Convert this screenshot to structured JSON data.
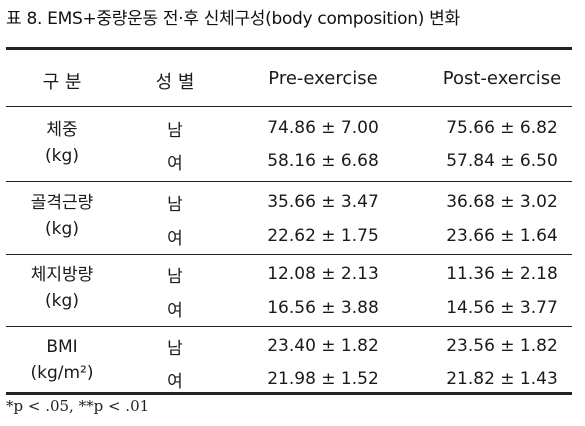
{
  "caption": "표 8. EMS+중량운동 전·후 신체구성(body composition) 변화",
  "columns": {
    "group": "구 분",
    "sex": "성 별",
    "pre": "Pre-exercise",
    "post": "Post-exercise"
  },
  "rows": [
    {
      "label": "체중",
      "unit": "(kg)",
      "male": {
        "sex": "남",
        "pre": "74.86 ± 7.00",
        "post": "75.66 ± 6.82"
      },
      "female": {
        "sex": "여",
        "pre": "58.16 ± 6.68",
        "post": "57.84 ± 6.50"
      }
    },
    {
      "label": "골격근량",
      "unit": "(kg)",
      "male": {
        "sex": "남",
        "pre": "35.66 ± 3.47",
        "post": "36.68 ± 3.02"
      },
      "female": {
        "sex": "여",
        "pre": "22.62 ± 1.75",
        "post": "23.66 ± 1.64"
      }
    },
    {
      "label": "체지방량",
      "unit": "(kg)",
      "male": {
        "sex": "남",
        "pre": "12.08 ± 2.13",
        "post": "11.36 ± 2.18"
      },
      "female": {
        "sex": "여",
        "pre": "16.56 ± 3.88",
        "post": "14.56 ± 3.77"
      }
    },
    {
      "label": "BMI",
      "unit": "(kg/m²)",
      "male": {
        "sex": "남",
        "pre": "23.40 ± 1.82",
        "post": "23.56 ± 1.82"
      },
      "female": {
        "sex": "여",
        "pre": "21.98 ± 1.52",
        "post": "21.82 ± 1.43"
      }
    }
  ],
  "footnote": "*p < .05, **p < .01"
}
